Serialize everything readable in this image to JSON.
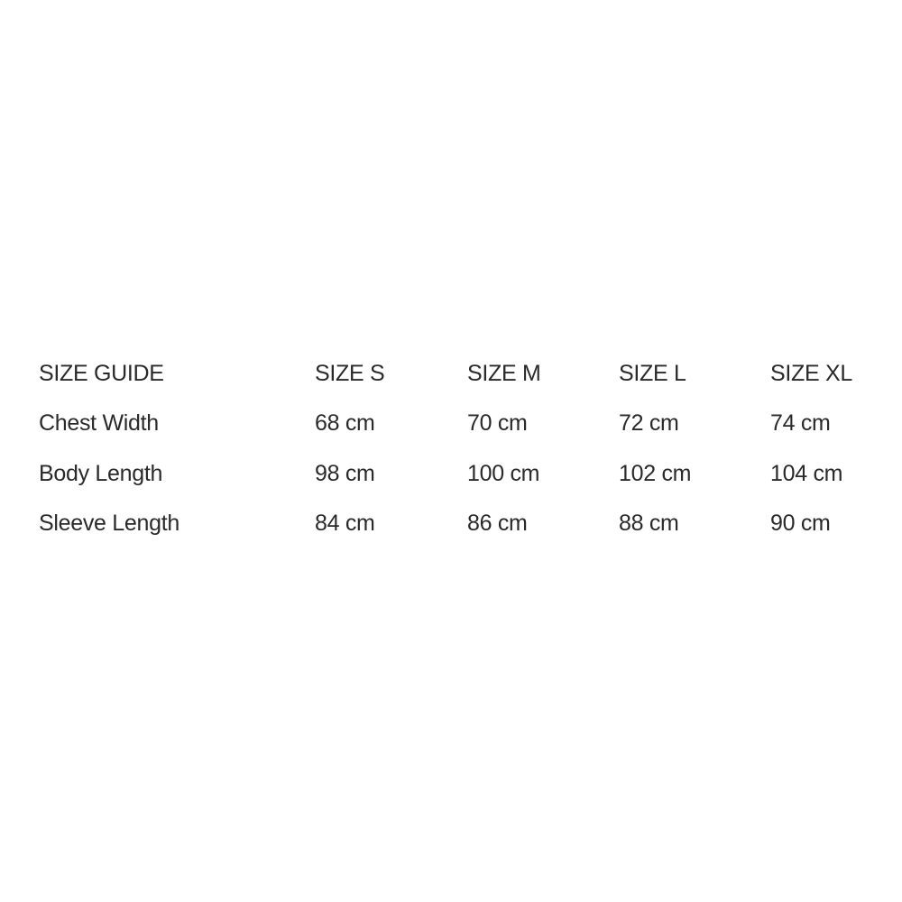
{
  "table": {
    "headers": [
      "SIZE GUIDE",
      "SIZE S",
      "SIZE M",
      "SIZE L",
      "SIZE XL"
    ],
    "rows": [
      [
        "Chest Width",
        "68 cm",
        "70 cm",
        "72 cm",
        "74 cm"
      ],
      [
        "Body Length",
        "98 cm",
        "100 cm",
        "102 cm",
        "104 cm"
      ],
      [
        "Sleeve Length",
        "84 cm",
        "86 cm",
        "88 cm",
        "90 cm"
      ]
    ]
  }
}
